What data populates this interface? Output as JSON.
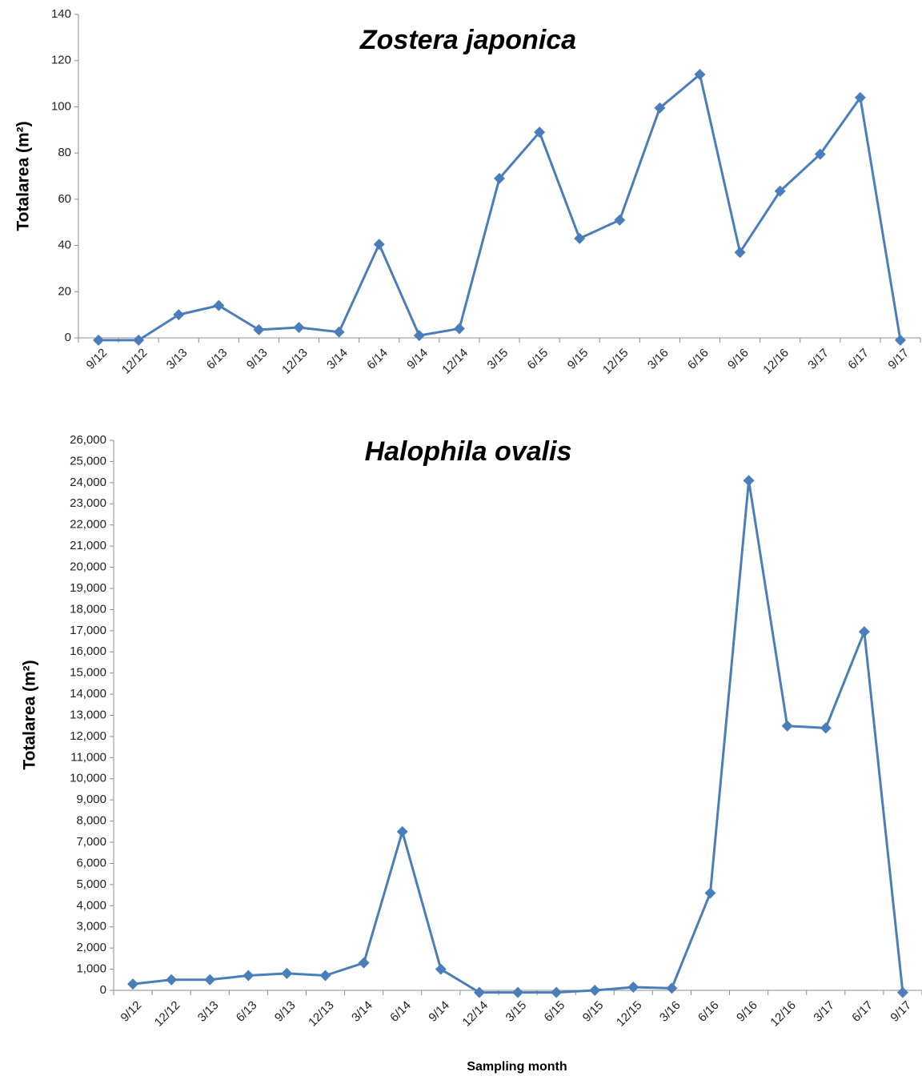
{
  "chart_data": [
    {
      "type": "line",
      "title": "Zostera japonica",
      "ylabel": "Totalarea (m²)",
      "xlabel": "",
      "categories": [
        "9/12",
        "12/12",
        "3/13",
        "6/13",
        "9/13",
        "12/13",
        "3/14",
        "6/14",
        "9/14",
        "12/14",
        "3/15",
        "6/15",
        "9/15",
        "12/15",
        "3/16",
        "6/16",
        "9/16",
        "12/16",
        "3/17",
        "6/17",
        "9/17"
      ],
      "series": [
        {
          "values": [
            -1,
            -1,
            10,
            14,
            3.5,
            4.5,
            2.5,
            40.5,
            1,
            4,
            69,
            89,
            43,
            51,
            99.5,
            114,
            37,
            63.5,
            79.5,
            104,
            -1
          ]
        }
      ],
      "ylim": [
        0,
        140
      ],
      "yticks": [
        0,
        20,
        40,
        60,
        80,
        100,
        120,
        140
      ],
      "ytick_labels": [
        "0",
        "20",
        "40",
        "60",
        "80",
        "100",
        "120",
        "140"
      ],
      "grid": false,
      "color": "#4a7ebb"
    },
    {
      "type": "line",
      "title": "Halophila ovalis",
      "ylabel": "Totalarea (m²)",
      "xlabel": "Sampling month",
      "categories": [
        "9/12",
        "12/12",
        "3/13",
        "6/13",
        "9/13",
        "12/13",
        "3/14",
        "6/14",
        "9/14",
        "12/14",
        "3/15",
        "6/15",
        "9/15",
        "12/15",
        "3/16",
        "6/16",
        "9/16",
        "12/16",
        "3/17",
        "6/17",
        "9/17"
      ],
      "series": [
        {
          "values": [
            300,
            500,
            500,
            700,
            800,
            700,
            1300,
            7500,
            1000,
            -100,
            -100,
            -100,
            0,
            150,
            100,
            4600,
            24100,
            12500,
            12400,
            16950,
            -100
          ]
        }
      ],
      "ylim": [
        0,
        26000
      ],
      "yticks": [
        0,
        1000,
        2000,
        3000,
        4000,
        5000,
        6000,
        7000,
        8000,
        9000,
        10000,
        11000,
        12000,
        13000,
        14000,
        15000,
        16000,
        17000,
        18000,
        19000,
        20000,
        21000,
        22000,
        23000,
        24000,
        25000,
        26000
      ],
      "ytick_labels": [
        "0",
        "1,000",
        "2,000",
        "3,000",
        "4,000",
        "5,000",
        "6,000",
        "7,000",
        "8,000",
        "9,000",
        "10,000",
        "11,000",
        "12,000",
        "13,000",
        "14,000",
        "15,000",
        "16,000",
        "17,000",
        "18,000",
        "19,000",
        "20,000",
        "21,000",
        "22,000",
        "23,000",
        "24,000",
        "25,000",
        "26,000"
      ],
      "grid": false,
      "color": "#4a7ebb"
    }
  ]
}
